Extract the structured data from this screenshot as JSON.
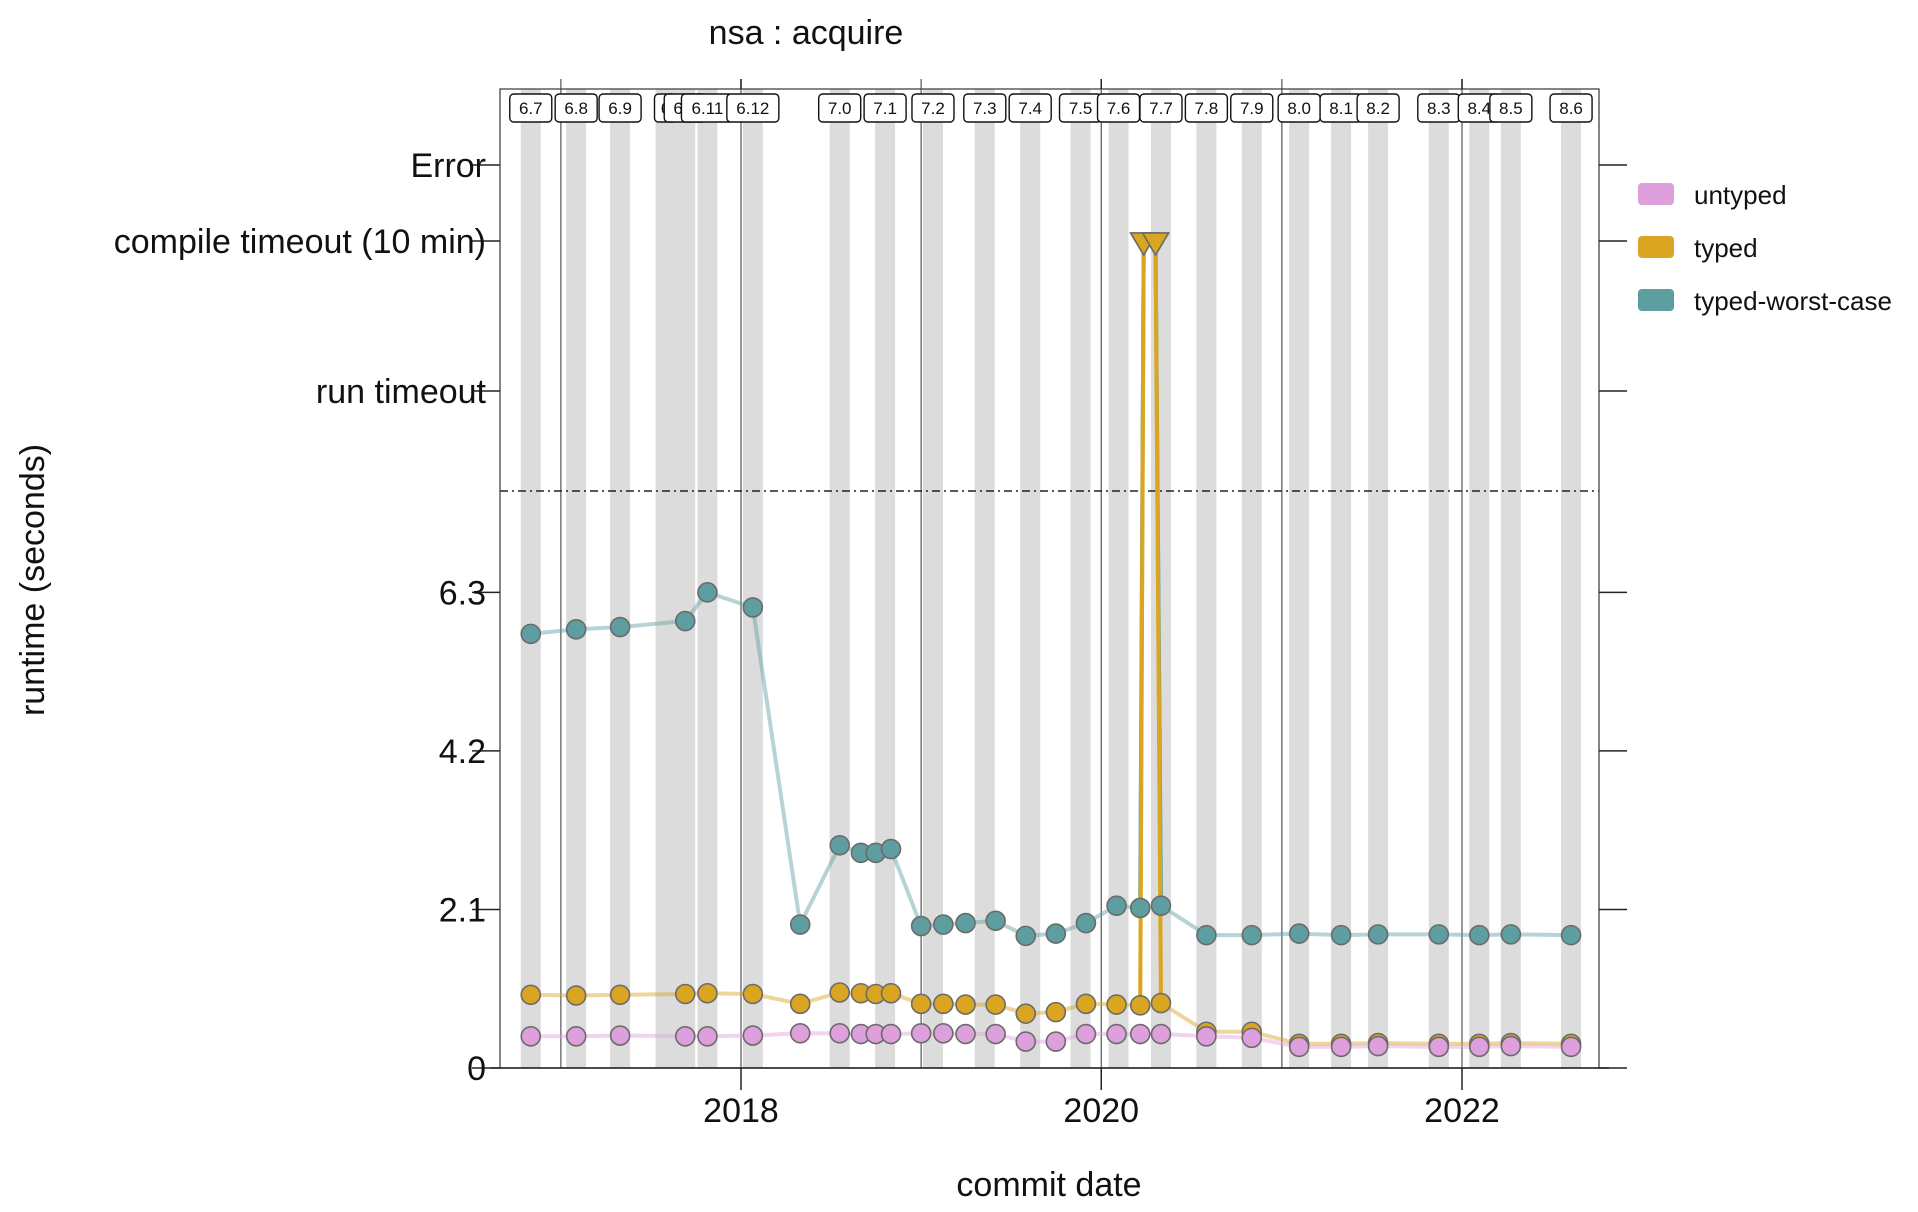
{
  "chart_data": {
    "type": "line",
    "title": "nsa : acquire",
    "xlabel": "commit date",
    "ylabel": "runtime (seconds)",
    "ylim": [
      0,
      8.4
    ],
    "yticks": [
      {
        "value": 0,
        "label": "0"
      },
      {
        "value": 2.1,
        "label": "2.1"
      },
      {
        "value": 4.2,
        "label": "4.2"
      },
      {
        "value": 6.3,
        "label": "6.3"
      }
    ],
    "special_levels": [
      {
        "key": "run_timeout",
        "label": "run timeout"
      },
      {
        "key": "compile_timeout",
        "label": "compile timeout (10 min)"
      },
      {
        "key": "error",
        "label": "Error"
      }
    ],
    "xlim": [
      "2016-10-15",
      "2022-09-20"
    ],
    "xticks": [
      {
        "date": "2018-01-01",
        "label": "2018"
      },
      {
        "date": "2020-01-01",
        "label": "2020"
      },
      {
        "date": "2022-01-01",
        "label": "2022"
      }
    ],
    "grid": false,
    "legend_position": "right",
    "legend": [
      {
        "name": "untyped",
        "color": "#DDA0DD"
      },
      {
        "name": "typed",
        "color": "#DAA520"
      },
      {
        "name": "typed-worst-case",
        "color": "#5F9EA0"
      }
    ],
    "releases": [
      {
        "label": "6.7",
        "date": "2016-11-01"
      },
      {
        "label": "6.8",
        "date": "2017-02-01"
      },
      {
        "label": "6.9",
        "date": "2017-05-01"
      },
      {
        "label": "6",
        "date": "2017-08-01"
      },
      {
        "label": "6.1",
        "date": "2017-09-10"
      },
      {
        "label": "6.11",
        "date": "2017-10-25"
      },
      {
        "label": "6.12",
        "date": "2018-01-25"
      },
      {
        "label": "7.0",
        "date": "2018-07-20"
      },
      {
        "label": "7.1",
        "date": "2018-10-20"
      },
      {
        "label": "7.2",
        "date": "2019-01-25"
      },
      {
        "label": "7.3",
        "date": "2019-05-10"
      },
      {
        "label": "7.4",
        "date": "2019-08-10"
      },
      {
        "label": "7.5",
        "date": "2019-11-20"
      },
      {
        "label": "7.6",
        "date": "2020-02-05"
      },
      {
        "label": "7.7",
        "date": "2020-05-01"
      },
      {
        "label": "7.8",
        "date": "2020-08-01"
      },
      {
        "label": "7.9",
        "date": "2020-11-01"
      },
      {
        "label": "8.0",
        "date": "2021-02-05"
      },
      {
        "label": "8.1",
        "date": "2021-05-01"
      },
      {
        "label": "8.2",
        "date": "2021-07-15"
      },
      {
        "label": "8.3",
        "date": "2021-11-15"
      },
      {
        "label": "8.4",
        "date": "2022-02-05"
      },
      {
        "label": "8.5",
        "date": "2022-04-10"
      },
      {
        "label": "8.6",
        "date": "2022-08-10"
      }
    ],
    "series": [
      {
        "name": "untyped",
        "color": "#DDA0DD",
        "points": [
          {
            "date": "2016-11-01",
            "y": 0.42
          },
          {
            "date": "2017-02-01",
            "y": 0.42
          },
          {
            "date": "2017-05-01",
            "y": 0.43
          },
          {
            "date": "2017-09-10",
            "y": 0.42
          },
          {
            "date": "2017-10-25",
            "y": 0.42
          },
          {
            "date": "2018-01-25",
            "y": 0.43
          },
          {
            "date": "2018-05-01",
            "y": 0.46
          },
          {
            "date": "2018-07-20",
            "y": 0.46
          },
          {
            "date": "2018-09-01",
            "y": 0.45
          },
          {
            "date": "2018-10-01",
            "y": 0.45
          },
          {
            "date": "2018-11-01",
            "y": 0.45
          },
          {
            "date": "2019-01-01",
            "y": 0.46
          },
          {
            "date": "2019-02-15",
            "y": 0.46
          },
          {
            "date": "2019-04-01",
            "y": 0.45
          },
          {
            "date": "2019-06-01",
            "y": 0.45
          },
          {
            "date": "2019-08-01",
            "y": 0.35
          },
          {
            "date": "2019-10-01",
            "y": 0.35
          },
          {
            "date": "2019-12-01",
            "y": 0.45
          },
          {
            "date": "2020-02-01",
            "y": 0.45
          },
          {
            "date": "2020-03-20",
            "y": 0.45
          },
          {
            "date": "2020-05-01",
            "y": 0.45
          },
          {
            "date": "2020-08-01",
            "y": 0.42
          },
          {
            "date": "2020-11-01",
            "y": 0.4
          },
          {
            "date": "2021-02-05",
            "y": 0.28
          },
          {
            "date": "2021-05-01",
            "y": 0.28
          },
          {
            "date": "2021-07-15",
            "y": 0.29
          },
          {
            "date": "2021-11-15",
            "y": 0.28
          },
          {
            "date": "2022-02-05",
            "y": 0.28
          },
          {
            "date": "2022-04-10",
            "y": 0.29
          },
          {
            "date": "2022-08-10",
            "y": 0.28
          }
        ]
      },
      {
        "name": "typed",
        "color": "#DAA520",
        "points": [
          {
            "date": "2016-11-01",
            "y": 0.97
          },
          {
            "date": "2017-02-01",
            "y": 0.96
          },
          {
            "date": "2017-05-01",
            "y": 0.97
          },
          {
            "date": "2017-09-10",
            "y": 0.98
          },
          {
            "date": "2017-10-25",
            "y": 0.99
          },
          {
            "date": "2018-01-25",
            "y": 0.98
          },
          {
            "date": "2018-05-01",
            "y": 0.85
          },
          {
            "date": "2018-07-20",
            "y": 1.0
          },
          {
            "date": "2018-09-01",
            "y": 0.99
          },
          {
            "date": "2018-10-01",
            "y": 0.98
          },
          {
            "date": "2018-11-01",
            "y": 0.99
          },
          {
            "date": "2019-01-01",
            "y": 0.85
          },
          {
            "date": "2019-02-15",
            "y": 0.85
          },
          {
            "date": "2019-04-01",
            "y": 0.84
          },
          {
            "date": "2019-06-01",
            "y": 0.84
          },
          {
            "date": "2019-08-01",
            "y": 0.72
          },
          {
            "date": "2019-10-01",
            "y": 0.74
          },
          {
            "date": "2019-12-01",
            "y": 0.85
          },
          {
            "date": "2020-02-01",
            "y": 0.84
          },
          {
            "date": "2020-03-20",
            "y": 0.83
          },
          {
            "date": "2020-03-27",
            "y": "compile timeout (10 min)"
          },
          {
            "date": "2020-04-20",
            "y": "compile timeout (10 min)"
          },
          {
            "date": "2020-05-01",
            "y": 0.86
          },
          {
            "date": "2020-08-01",
            "y": 0.48
          },
          {
            "date": "2020-11-01",
            "y": 0.48
          },
          {
            "date": "2021-02-05",
            "y": 0.32
          },
          {
            "date": "2021-05-01",
            "y": 0.32
          },
          {
            "date": "2021-07-15",
            "y": 0.33
          },
          {
            "date": "2021-11-15",
            "y": 0.32
          },
          {
            "date": "2022-02-05",
            "y": 0.32
          },
          {
            "date": "2022-04-10",
            "y": 0.33
          },
          {
            "date": "2022-08-10",
            "y": 0.32
          }
        ]
      },
      {
        "name": "typed-worst-case",
        "color": "#5F9EA0",
        "points": [
          {
            "date": "2016-11-01",
            "y": 5.75
          },
          {
            "date": "2017-02-01",
            "y": 5.81
          },
          {
            "date": "2017-05-01",
            "y": 5.84
          },
          {
            "date": "2017-09-10",
            "y": 5.92
          },
          {
            "date": "2017-10-25",
            "y": 6.3
          },
          {
            "date": "2018-01-25",
            "y": 6.1
          },
          {
            "date": "2018-05-01",
            "y": 1.9
          },
          {
            "date": "2018-07-20",
            "y": 2.95
          },
          {
            "date": "2018-09-01",
            "y": 2.85
          },
          {
            "date": "2018-10-01",
            "y": 2.85
          },
          {
            "date": "2018-11-01",
            "y": 2.9
          },
          {
            "date": "2019-01-01",
            "y": 1.88
          },
          {
            "date": "2019-02-15",
            "y": 1.9
          },
          {
            "date": "2019-04-01",
            "y": 1.92
          },
          {
            "date": "2019-06-01",
            "y": 1.95
          },
          {
            "date": "2019-08-01",
            "y": 1.75
          },
          {
            "date": "2019-10-01",
            "y": 1.78
          },
          {
            "date": "2019-12-01",
            "y": 1.92
          },
          {
            "date": "2020-02-01",
            "y": 2.15
          },
          {
            "date": "2020-03-20",
            "y": 2.12
          },
          {
            "date": "2020-03-27",
            "y": "compile timeout (10 min)"
          },
          {
            "date": "2020-04-20",
            "y": "compile timeout (10 min)"
          },
          {
            "date": "2020-05-01",
            "y": 2.15
          },
          {
            "date": "2020-08-01",
            "y": 1.76
          },
          {
            "date": "2020-11-01",
            "y": 1.76
          },
          {
            "date": "2021-02-05",
            "y": 1.78
          },
          {
            "date": "2021-05-01",
            "y": 1.76
          },
          {
            "date": "2021-07-15",
            "y": 1.77
          },
          {
            "date": "2021-11-15",
            "y": 1.77
          },
          {
            "date": "2022-02-05",
            "y": 1.76
          },
          {
            "date": "2022-04-10",
            "y": 1.77
          },
          {
            "date": "2022-08-10",
            "y": 1.76
          }
        ]
      }
    ]
  }
}
